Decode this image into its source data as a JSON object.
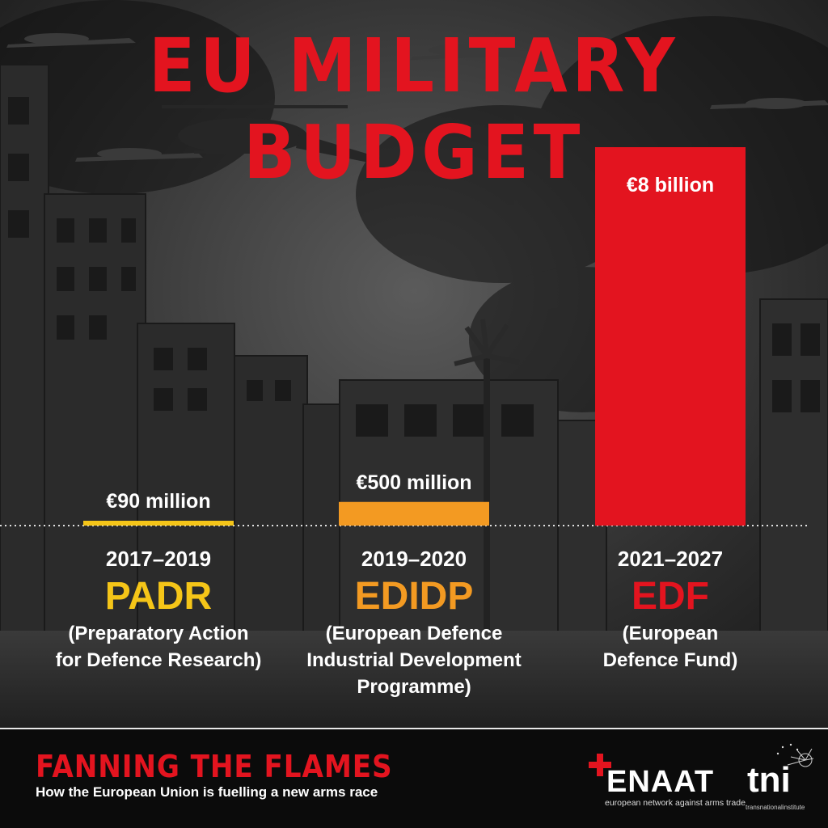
{
  "title": "EU MILITARY BUDGET",
  "colors": {
    "accent_red": "#e3141f",
    "padr_yellow": "#f5c518",
    "edidp_orange": "#f39a22",
    "edf_red": "#e3141f"
  },
  "chart_data": {
    "type": "bar",
    "title": "EU MILITARY BUDGET",
    "categories": [
      "2017–2019",
      "2019–2020",
      "2021–2027"
    ],
    "values": [
      90,
      500,
      8000
    ],
    "unit_note": "million EUR",
    "value_labels": [
      "€90 million",
      "€500 million",
      "€8 billion"
    ],
    "acronyms": [
      "PADR",
      "EDIDP",
      "EDF"
    ],
    "full_names": [
      "(Preparatory Action\nfor Defence Research)",
      "(European Defence\nIndustrial Development\nProgramme)",
      "(European\nDefence Fund)"
    ],
    "bar_colors": [
      "#f5c518",
      "#f39a22",
      "#e3141f"
    ],
    "ylim": [
      0,
      8000
    ],
    "grid": false,
    "legend": "none"
  },
  "footer": {
    "title": "FANNING THE FLAMES",
    "subtitle": "How the European Union is fuelling a new arms race"
  },
  "logos": {
    "enaat_name": "ENAAT",
    "enaat_tagline": "european network against arms trade",
    "tni_name": "tni",
    "tni_tagline": "transnationalinstitute"
  },
  "icons": [
    "helicopter-icon",
    "drone-icon",
    "enaat-cross-icon",
    "tni-dandelion-icon"
  ]
}
